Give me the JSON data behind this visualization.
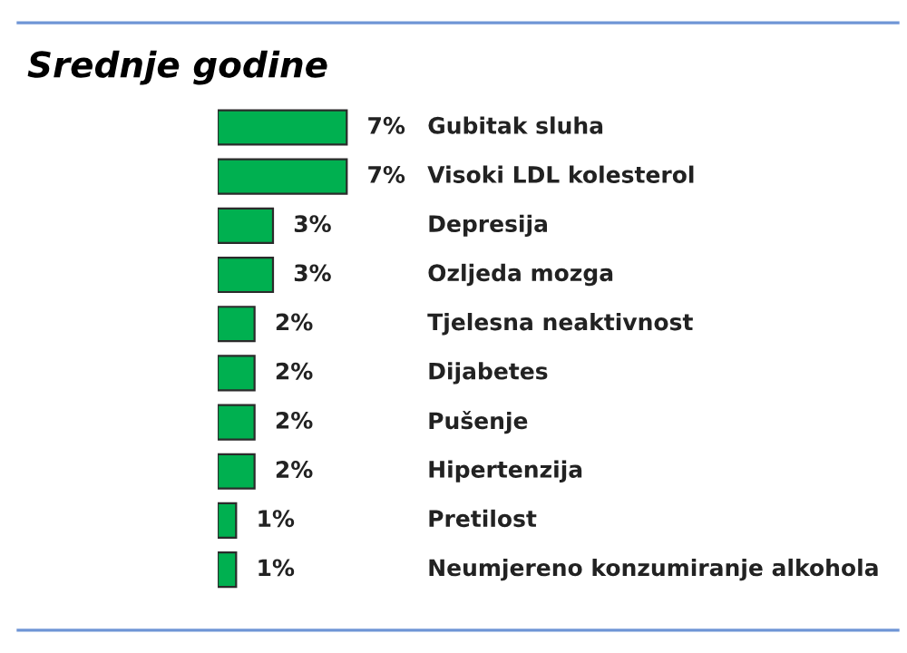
{
  "chart_data": {
    "type": "bar",
    "orientation": "horizontal",
    "title": "Srednje godine",
    "categories": [
      "Gubitak sluha",
      "Visoki LDL kolesterol",
      "Depresija",
      "Ozljeda mozga",
      "Tjelesna neaktivnost",
      "Dijabetes",
      "Pušenje",
      "Hipertenzija",
      "Pretilost",
      "Neumjereno konzumiranje alkohola"
    ],
    "values": [
      7,
      7,
      3,
      3,
      2,
      2,
      2,
      2,
      1,
      1
    ],
    "value_labels": [
      "7%",
      "7%",
      "3%",
      "3%",
      "2%",
      "2%",
      "2%",
      "2%",
      "1%",
      "1%"
    ],
    "color": "#00b050"
  }
}
